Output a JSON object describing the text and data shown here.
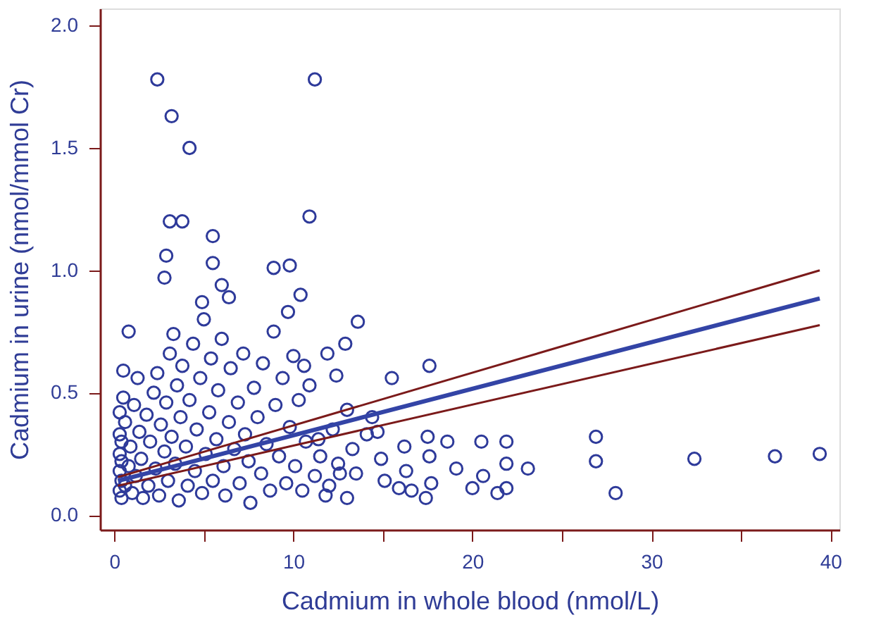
{
  "chart_data": {
    "type": "scatter",
    "xlabel": "Cadmium in whole blood (nmol/L)",
    "ylabel": "Cadmium in urine (nmol/mmol Cr)",
    "xlim": [
      -0.8,
      40.5
    ],
    "ylim": [
      -0.06,
      2.07
    ],
    "xticks": [
      0,
      {
        "value": 5,
        "label": null
      },
      10,
      {
        "value": 15,
        "label": null
      },
      20,
      {
        "value": 25,
        "label": null
      },
      30,
      {
        "value": 35,
        "label": null
      },
      40
    ],
    "yticks": [
      {
        "value": 0,
        "label": "0.0"
      },
      0.5,
      {
        "value": 1,
        "label": "1.0"
      },
      1.5,
      {
        "value": 2,
        "label": "2.0"
      }
    ],
    "grid": false,
    "series": [
      {
        "marker": "circle",
        "color": "#2e3a9a",
        "x": [
          2.4,
          3.2,
          4.2,
          11.2,
          10.9,
          3.1,
          3.8,
          5.5,
          2.9,
          2.8,
          5.5,
          8.9,
          9.8,
          6.0,
          0.8,
          4.9,
          6.4,
          10.4,
          9.7,
          13.6,
          12.9,
          11.9,
          17.6,
          15.5,
          12.4,
          10.6,
          14.4,
          13.0,
          11.4,
          26.9,
          26.9,
          28.0,
          32.4,
          36.9,
          39.4,
          23.1,
          21.9,
          21.9,
          21.9,
          21.4,
          20.5,
          20.6,
          20.0,
          17.5,
          18.6,
          17.7,
          17.4,
          16.3,
          16.2,
          17.6,
          19.1,
          16.6,
          15.9,
          15.1,
          14.7,
          14.1,
          13.3,
          13.5,
          12.6,
          13.0,
          11.8,
          14.9,
          0.3,
          0.3,
          0.3,
          0.3,
          0.3,
          0.4,
          0.4,
          0.4,
          0.4,
          0.5,
          0.5,
          0.6,
          0.6,
          0.8,
          0.9,
          1.0,
          1.1,
          1.2,
          1.3,
          1.4,
          1.5,
          1.6,
          1.8,
          1.9,
          2.0,
          2.2,
          2.3,
          2.4,
          2.5,
          2.6,
          2.8,
          2.9,
          3.0,
          3.1,
          3.2,
          3.3,
          3.4,
          3.5,
          3.6,
          3.7,
          3.8,
          4.0,
          4.1,
          4.2,
          4.4,
          4.5,
          4.6,
          4.8,
          4.9,
          5.0,
          5.1,
          5.3,
          5.4,
          5.5,
          5.7,
          5.8,
          6.0,
          6.1,
          6.2,
          6.4,
          6.5,
          6.7,
          6.9,
          7.0,
          7.2,
          7.3,
          7.5,
          7.6,
          7.8,
          8.0,
          8.2,
          8.3,
          8.5,
          8.7,
          8.9,
          9.0,
          9.2,
          9.4,
          9.6,
          9.8,
          10.0,
          10.1,
          10.3,
          10.5,
          10.7,
          10.9,
          11.2,
          11.5,
          12.0,
          12.2,
          12.5
        ],
        "values": [
          1.78,
          1.63,
          1.5,
          1.78,
          1.22,
          1.2,
          1.2,
          1.14,
          1.06,
          0.97,
          1.03,
          1.01,
          1.02,
          0.94,
          0.75,
          0.87,
          0.89,
          0.9,
          0.83,
          0.79,
          0.7,
          0.66,
          0.61,
          0.56,
          0.57,
          0.61,
          0.4,
          0.43,
          0.31,
          0.32,
          0.22,
          0.09,
          0.23,
          0.24,
          0.25,
          0.19,
          0.3,
          0.21,
          0.11,
          0.09,
          0.3,
          0.16,
          0.11,
          0.32,
          0.3,
          0.13,
          0.07,
          0.18,
          0.28,
          0.24,
          0.19,
          0.1,
          0.11,
          0.14,
          0.34,
          0.33,
          0.27,
          0.17,
          0.17,
          0.07,
          0.08,
          0.23,
          0.1,
          0.18,
          0.25,
          0.33,
          0.42,
          0.07,
          0.14,
          0.22,
          0.3,
          0.48,
          0.59,
          0.12,
          0.38,
          0.2,
          0.28,
          0.09,
          0.45,
          0.16,
          0.56,
          0.34,
          0.23,
          0.07,
          0.41,
          0.12,
          0.3,
          0.5,
          0.19,
          0.58,
          0.08,
          0.37,
          0.26,
          0.46,
          0.14,
          0.66,
          0.32,
          0.74,
          0.21,
          0.53,
          0.06,
          0.4,
          0.61,
          0.28,
          0.12,
          0.47,
          0.7,
          0.18,
          0.35,
          0.56,
          0.09,
          0.8,
          0.25,
          0.42,
          0.64,
          0.14,
          0.31,
          0.51,
          0.72,
          0.2,
          0.08,
          0.38,
          0.6,
          0.27,
          0.46,
          0.13,
          0.66,
          0.33,
          0.22,
          0.05,
          0.52,
          0.4,
          0.17,
          0.62,
          0.29,
          0.1,
          0.75,
          0.45,
          0.24,
          0.56,
          0.13,
          0.36,
          0.65,
          0.2,
          0.47,
          0.1,
          0.3,
          0.53,
          0.16,
          0.24,
          0.12,
          0.35,
          0.21
        ]
      },
      {
        "type": "line",
        "color": "#7b1a1a",
        "x": [
          0.2,
          39.4
        ],
        "values": [
          0.155,
          1.0
        ]
      },
      {
        "type": "line",
        "color": "#7b1a1a",
        "x": [
          0.2,
          39.4
        ],
        "values": [
          0.12,
          0.776
        ]
      },
      {
        "type": "line",
        "color": "#3344a6",
        "x": [
          0.2,
          39.4
        ],
        "values": [
          0.14,
          0.885
        ]
      }
    ]
  }
}
